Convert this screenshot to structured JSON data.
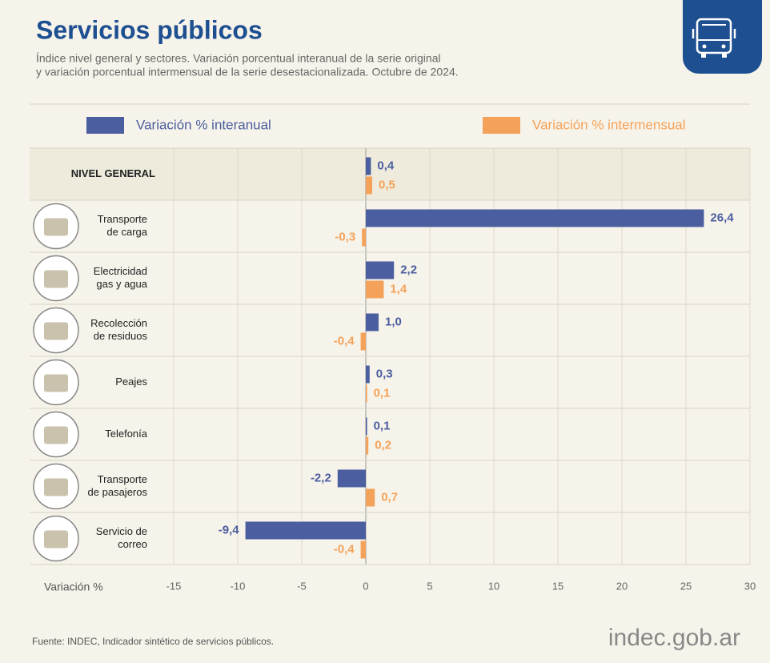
{
  "header": {
    "title": "Servicios públicos",
    "subtitle": [
      "Índice nivel general y sectores. Variación porcentual interanual de la serie original",
      "y variación porcentual intermensual de la serie desestacionalizada. Octubre de 2024."
    ]
  },
  "chart_data": {
    "type": "bar",
    "categories": [
      [
        "NIVEL GENERAL"
      ],
      [
        "Transporte",
        "de carga"
      ],
      [
        "Electricidad",
        "gas y agua"
      ],
      [
        "Recolección",
        "de residuos"
      ],
      [
        "Peajes"
      ],
      [
        "Telefonía"
      ],
      [
        "Transporte",
        "de pasajeros"
      ],
      [
        "Servicio de",
        "correo"
      ]
    ],
    "series": [
      {
        "name": "Variación % interanual",
        "color": "#4b5e9f",
        "values": [
          0.4,
          26.4,
          2.2,
          1.0,
          0.3,
          0.1,
          -2.2,
          -9.4
        ],
        "value_labels": [
          "0,4",
          "26,4",
          "2,2",
          "1,0",
          "0,3",
          "0,1",
          "-2,2",
          "-9,4"
        ]
      },
      {
        "name": "Variación % intermensual",
        "color": "#f4a259",
        "values": [
          0.5,
          -0.3,
          1.4,
          -0.4,
          0.1,
          0.2,
          0.7,
          -0.4
        ],
        "value_labels": [
          "0,5",
          "-0,3",
          "1,4",
          "-0,4",
          "0,1",
          "0,2",
          "0,7",
          "-0,4"
        ]
      }
    ],
    "xlim": [
      -15,
      30
    ],
    "xticks": [
      -15,
      -10,
      -5,
      0,
      5,
      10,
      15,
      20,
      25,
      30
    ],
    "x_label": "Variación %",
    "grid": true
  },
  "footer": {
    "source": "Fuente: INDEC, Indicador sintético de servicios públicos.",
    "logo": "indec.gob.ar"
  }
}
